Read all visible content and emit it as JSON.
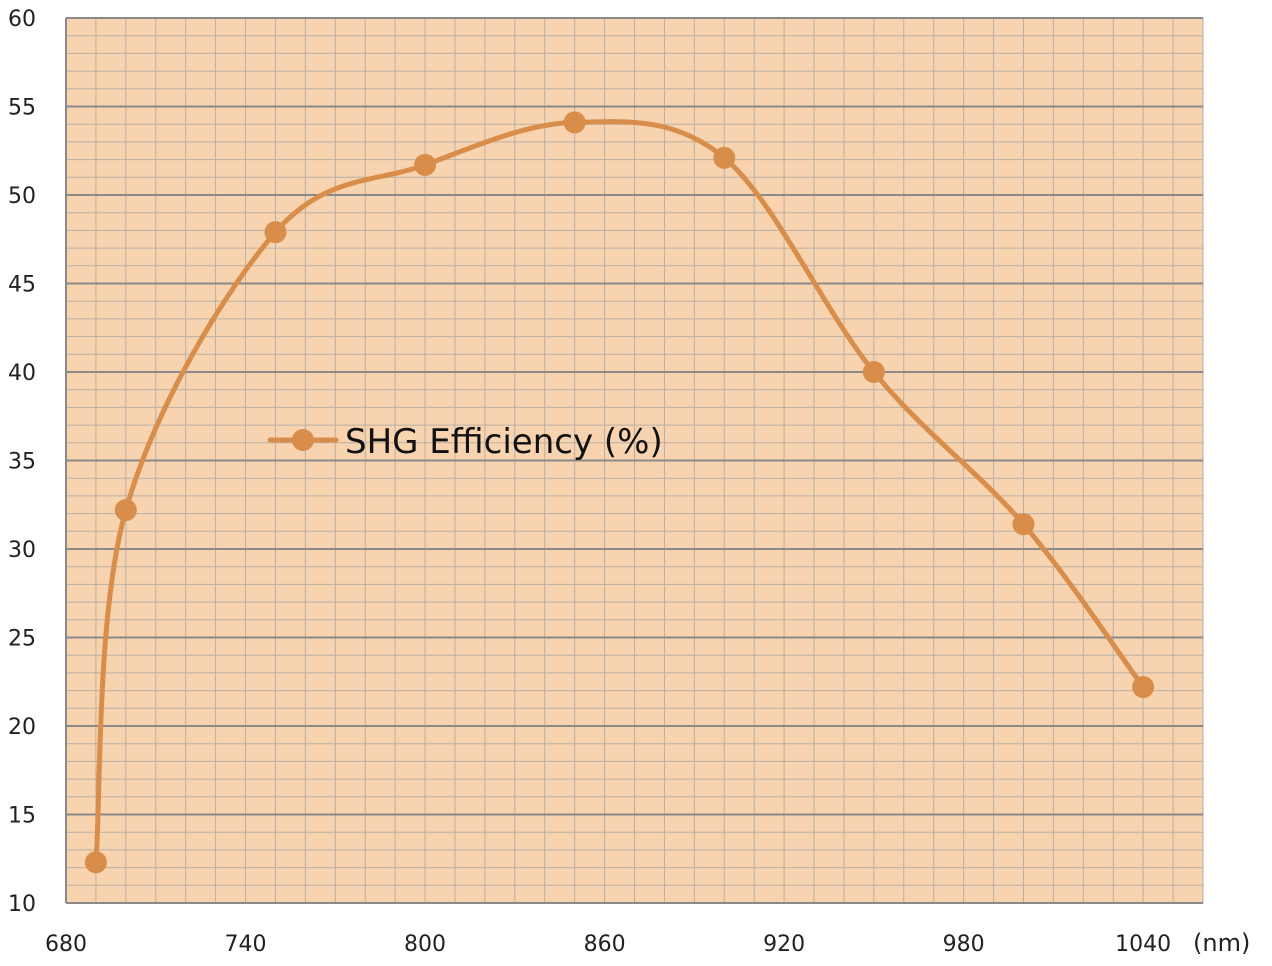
{
  "chart_data": {
    "type": "line",
    "title": "",
    "xlabel": "(nm)",
    "ylabel": "",
    "xlim": [
      680,
      1060
    ],
    "ylim": [
      10,
      60
    ],
    "x_ticks": [
      680,
      740,
      800,
      860,
      920,
      980,
      1040
    ],
    "y_ticks": [
      10,
      15,
      20,
      25,
      30,
      35,
      40,
      45,
      50,
      55,
      60
    ],
    "grid": true,
    "smooth": true,
    "legend_position": "center-left",
    "series": [
      {
        "name": "SHG Efficiency (%)",
        "color": "#D88E4A",
        "x": [
          690,
          700,
          750,
          800,
          850,
          900,
          950,
          1000,
          1040
        ],
        "y": [
          12.3,
          32.2,
          47.9,
          51.7,
          54.1,
          52.1,
          40.0,
          31.4,
          22.2
        ]
      }
    ]
  },
  "colors": {
    "plot_background": "#F8D3AF",
    "grid_major": "#8A8A8A",
    "grid_minor": "#B9AFA3"
  }
}
